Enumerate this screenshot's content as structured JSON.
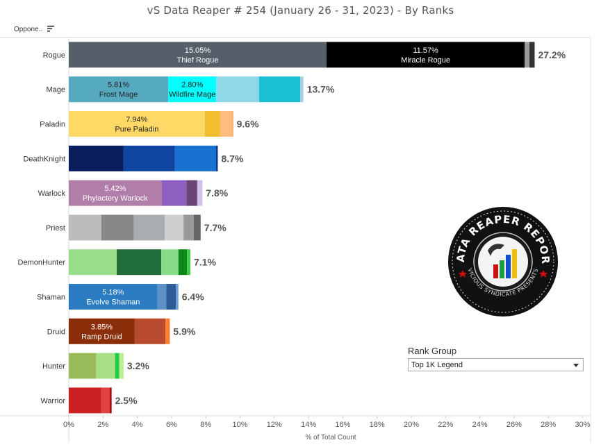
{
  "title": "vS Data Reaper #  254 (January 26 - 31, 2023) - By Ranks",
  "sort_header": "Oppone..",
  "rank_filter": {
    "title": "Rank Group",
    "selected": "Top 1K Legend"
  },
  "logo": {
    "text_top": "DATA REAPER REPORT",
    "text_bottom": "VICIOUS SYNDICATE PRESENTS"
  },
  "chart_data": {
    "type": "bar",
    "orientation": "horizontal",
    "stacked": true,
    "xlabel": "% of Total Count",
    "xlim": [
      0,
      30
    ],
    "xticks": [
      "0%",
      "2%",
      "4%",
      "6%",
      "8%",
      "10%",
      "12%",
      "14%",
      "16%",
      "18%",
      "20%",
      "22%",
      "24%",
      "26%",
      "28%",
      "30%"
    ],
    "grid": false,
    "categories": [
      "Rogue",
      "Mage",
      "Paladin",
      "DeathKnight",
      "Warlock",
      "Priest",
      "DemonHunter",
      "Shaman",
      "Druid",
      "Hunter",
      "Warrior"
    ],
    "totals": [
      "27.2%",
      "13.7%",
      "9.6%",
      "8.7%",
      "7.8%",
      "7.7%",
      "7.1%",
      "6.4%",
      "5.9%",
      "3.2%",
      "2.5%"
    ],
    "bars": [
      {
        "class": "Rogue",
        "segments": [
          {
            "value": 15.05,
            "color": "#555f6a",
            "pct": "15.05%",
            "name": "Thief Rogue",
            "text_color": "#ffffff"
          },
          {
            "value": 11.57,
            "color": "#000000",
            "pct": "11.57%",
            "name": "Miracle Rogue",
            "text_color": "#ffffff"
          },
          {
            "value": 0.28,
            "color": "#9a9a9a"
          },
          {
            "value": 0.3,
            "color": "#333333"
          }
        ]
      },
      {
        "class": "Mage",
        "segments": [
          {
            "value": 5.81,
            "color": "#55aabf",
            "pct": "5.81%",
            "name": "Frost Mage",
            "text_color": "#222222"
          },
          {
            "value": 2.8,
            "color": "#00ffff",
            "pct": "2.80%",
            "name": "Wildfire Mage",
            "text_color": "#222222"
          },
          {
            "value": 2.5,
            "color": "#8fd8e8"
          },
          {
            "value": 2.4,
            "color": "#1bbfd2"
          },
          {
            "value": 0.19,
            "color": "#a8d0e0"
          }
        ]
      },
      {
        "class": "Paladin",
        "segments": [
          {
            "value": 7.94,
            "color": "#ffd966",
            "pct": "7.94%",
            "name": "Pure Paladin",
            "text_color": "#222222"
          },
          {
            "value": 0.9,
            "color": "#f0be30"
          },
          {
            "value": 0.7,
            "color": "#ffbb80"
          },
          {
            "value": 0.06,
            "color": "#f5a040"
          }
        ]
      },
      {
        "class": "DeathKnight",
        "segments": [
          {
            "value": 3.2,
            "color": "#0a1e5e"
          },
          {
            "value": 3.0,
            "color": "#0f44a0"
          },
          {
            "value": 2.4,
            "color": "#1a72d0"
          },
          {
            "value": 0.1,
            "color": "#0a3a80"
          }
        ]
      },
      {
        "class": "Warlock",
        "segments": [
          {
            "value": 5.42,
            "color": "#b07ea8",
            "pct": "5.42%",
            "name": "Phylactery Warlock",
            "text_color": "#ffffff"
          },
          {
            "value": 1.45,
            "color": "#9060c0"
          },
          {
            "value": 0.63,
            "color": "#6a4575"
          },
          {
            "value": 0.3,
            "color": "#d0c0e8"
          }
        ]
      },
      {
        "class": "Priest",
        "segments": [
          {
            "value": 1.9,
            "color": "#bcbcbc"
          },
          {
            "value": 1.9,
            "color": "#888888"
          },
          {
            "value": 1.8,
            "color": "#a9adb0"
          },
          {
            "value": 1.1,
            "color": "#cfcfcf"
          },
          {
            "value": 0.6,
            "color": "#999999"
          },
          {
            "value": 0.4,
            "color": "#666666"
          }
        ]
      },
      {
        "class": "DemonHunter",
        "segments": [
          {
            "value": 2.8,
            "color": "#99dd88"
          },
          {
            "value": 2.6,
            "color": "#226e3a"
          },
          {
            "value": 1.0,
            "color": "#88dd88"
          },
          {
            "value": 0.5,
            "color": "#0b8a1a"
          },
          {
            "value": 0.2,
            "color": "#44cc44"
          }
        ]
      },
      {
        "class": "Shaman",
        "segments": [
          {
            "value": 5.18,
            "color": "#2a7bbf",
            "pct": "5.18%",
            "name": "Evolve Shaman",
            "text_color": "#ffffff"
          },
          {
            "value": 0.52,
            "color": "#5b91c4"
          },
          {
            "value": 0.55,
            "color": "#2e5c9a"
          },
          {
            "value": 0.15,
            "color": "#6aa0d0"
          }
        ]
      },
      {
        "class": "Druid",
        "segments": [
          {
            "value": 3.85,
            "color": "#8a2e0a",
            "pct": "3.85%",
            "name": "Ramp Druid",
            "text_color": "#ffffff"
          },
          {
            "value": 1.8,
            "color": "#b84a2e"
          },
          {
            "value": 0.25,
            "color": "#ff8030"
          }
        ]
      },
      {
        "class": "Hunter",
        "segments": [
          {
            "value": 1.6,
            "color": "#99bb5a"
          },
          {
            "value": 1.1,
            "color": "#a8e088"
          },
          {
            "value": 0.25,
            "color": "#22cc44"
          },
          {
            "value": 0.25,
            "color": "#b8f090"
          }
        ]
      },
      {
        "class": "Warrior",
        "segments": [
          {
            "value": 1.9,
            "color": "#cc1f22"
          },
          {
            "value": 0.5,
            "color": "#e04040"
          },
          {
            "value": 0.1,
            "color": "#990000"
          }
        ]
      }
    ]
  }
}
